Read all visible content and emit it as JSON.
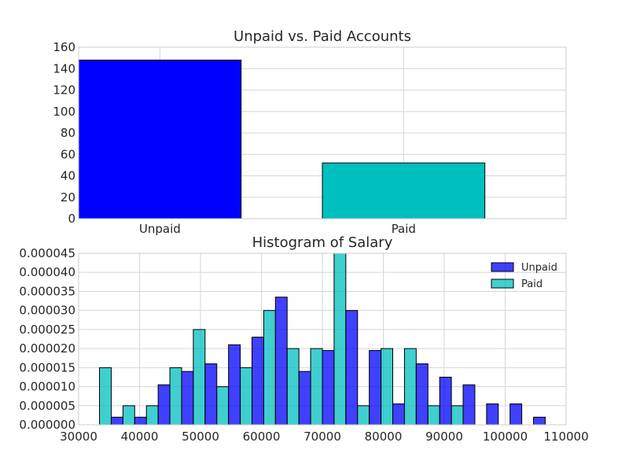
{
  "chart_data": [
    {
      "type": "bar",
      "title": "Unpaid vs. Paid Accounts",
      "xlabel": "",
      "ylabel": "",
      "categories": [
        "Unpaid",
        "Paid"
      ],
      "values": [
        148,
        52
      ],
      "colors": [
        "#0000ff",
        "#00bfbf"
      ],
      "ylim": [
        0,
        160
      ],
      "yticks": [
        0,
        20,
        40,
        60,
        80,
        100,
        120,
        140,
        160
      ],
      "grid": true,
      "legend": "none"
    },
    {
      "type": "bar",
      "title": "Histogram of Salary",
      "xlabel": "",
      "ylabel": "",
      "xlim": [
        30000,
        110000
      ],
      "ylim": [
        0,
        4.5e-05
      ],
      "xticks": [
        30000,
        40000,
        50000,
        60000,
        70000,
        80000,
        90000,
        100000,
        110000
      ],
      "yticks": [
        "0.000000",
        "0.000005",
        "0.000010",
        "0.000015",
        "0.000020",
        "0.000025",
        "0.000030",
        "0.000035",
        "0.000040",
        "0.000045"
      ],
      "bin_width": 3850,
      "bin_starts": [
        31500,
        35350,
        39200,
        43050,
        46900,
        50750,
        54600,
        58450,
        62300,
        66150,
        70000,
        73850,
        77700,
        81550,
        85400,
        89250,
        93100,
        96950,
        100800,
        104650
      ],
      "grid": true,
      "legend": "top-right",
      "series": [
        {
          "name": "Unpaid",
          "color": "#0000ff",
          "values": [
            0.0,
            2e-06,
            2e-06,
            1.05e-05,
            1.4e-05,
            1.6e-05,
            2.1e-05,
            2.3e-05,
            3.35e-05,
            1.4e-05,
            1.95e-05,
            3e-05,
            1.95e-05,
            5.5e-06,
            1.6e-05,
            1.25e-05,
            1.05e-05,
            5.5e-06,
            5.5e-06,
            2e-06
          ]
        },
        {
          "name": "Paid",
          "color": "#00bfbf",
          "values": [
            1.5e-05,
            5e-06,
            5e-06,
            1.5e-05,
            2.5e-05,
            1e-05,
            1.5e-05,
            3e-05,
            2e-05,
            2e-05,
            4.5e-05,
            5e-06,
            2e-05,
            2e-05,
            5e-06,
            5e-06,
            0.0,
            0.0,
            0.0,
            0.0
          ]
        }
      ]
    }
  ]
}
